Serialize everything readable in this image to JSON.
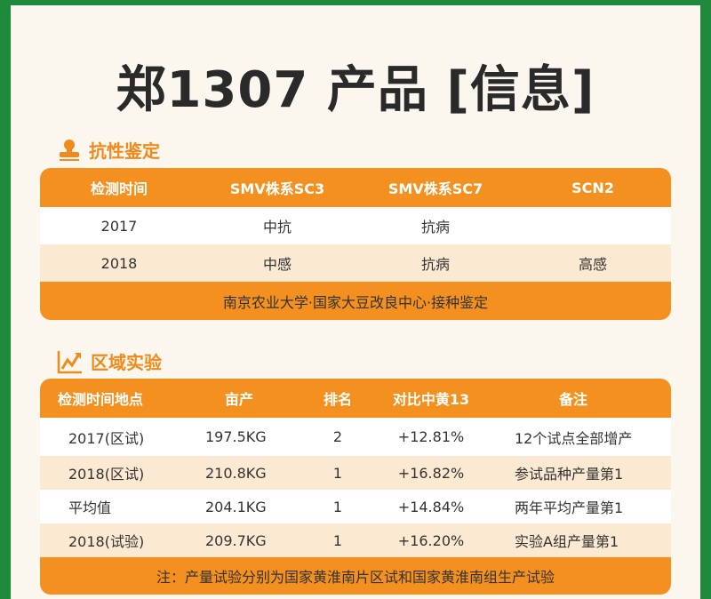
{
  "title": "郑1307 产品 [信息]",
  "section1": {
    "heading": "抗性鉴定",
    "icon": "stamp-icon",
    "headers": [
      "检测时间",
      "SMV株系SC3",
      "SMV株系SC7",
      "SCN2"
    ],
    "rows": [
      [
        "2017",
        "中抗",
        "抗病",
        ""
      ],
      [
        "2018",
        "中感",
        "抗病",
        "高感"
      ]
    ],
    "footer": "南京农业大学·国家大豆改良中心·接种鉴定"
  },
  "section2": {
    "heading": "区域实验",
    "icon": "chart-trend-icon",
    "headers": [
      "检测时间地点",
      "亩产",
      "排名",
      "对比中黄13",
      "备注"
    ],
    "rows": [
      [
        "2017(区试)",
        "197.5KG",
        "2",
        "+12.81%",
        "12个试点全部增产"
      ],
      [
        "2018(区试)",
        "210.8KG",
        "1",
        "+16.82%",
        "参试品种产量第1"
      ],
      [
        "平均值",
        "204.1KG",
        "1",
        "+14.84%",
        "两年平均产量第1"
      ],
      [
        "2018(试验)",
        "209.7KG",
        "1",
        "+16.20%",
        "实验A组产量第1"
      ]
    ],
    "footer": "注：产量试验分别为国家黄淮南片区试和国家黄淮南组生产试验"
  },
  "colors": {
    "accent": "#f3901f",
    "border": "#1f8a3c",
    "alt_row": "#fbe9d2"
  }
}
